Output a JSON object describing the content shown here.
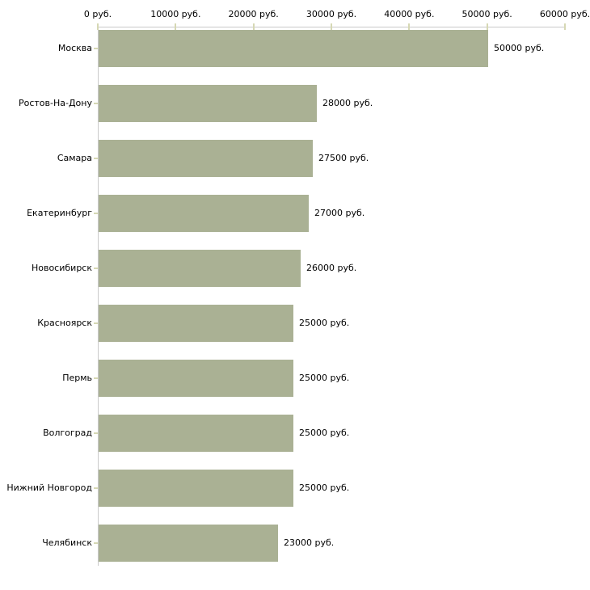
{
  "chart_data": {
    "type": "bar",
    "orientation": "horizontal",
    "title": "",
    "xlabel": "",
    "ylabel": "",
    "unit": "руб.",
    "categories": [
      "Москва",
      "Ростов-На-Дону",
      "Самара",
      "Екатеринбург",
      "Новосибирск",
      "Красноярск",
      "Пермь",
      "Волгоград",
      "Нижний Новгород",
      "Челябинск"
    ],
    "values": [
      50000,
      28000,
      27500,
      27000,
      26000,
      25000,
      25000,
      25000,
      25000,
      23000
    ],
    "value_labels": [
      "50000 руб.",
      "28000 руб.",
      "27500 руб.",
      "27000 руб.",
      "26000 руб.",
      "25000 руб.",
      "25000 руб.",
      "25000 руб.",
      "25000 руб.",
      "23000 руб."
    ],
    "xlim": [
      0,
      60000
    ],
    "x_ticks": [
      0,
      10000,
      20000,
      30000,
      40000,
      50000,
      60000
    ],
    "x_tick_labels": [
      "0 руб.",
      "10000 руб.",
      "20000 руб.",
      "30000 руб.",
      "40000 руб.",
      "50000 руб.",
      "60000 руб."
    ],
    "grid": false,
    "legend": false,
    "colors": {
      "bar": "#aab194",
      "axis_line": "#c9c9c9",
      "tick": "#d6d8b4",
      "text": "#000000",
      "background": "#ffffff"
    }
  }
}
